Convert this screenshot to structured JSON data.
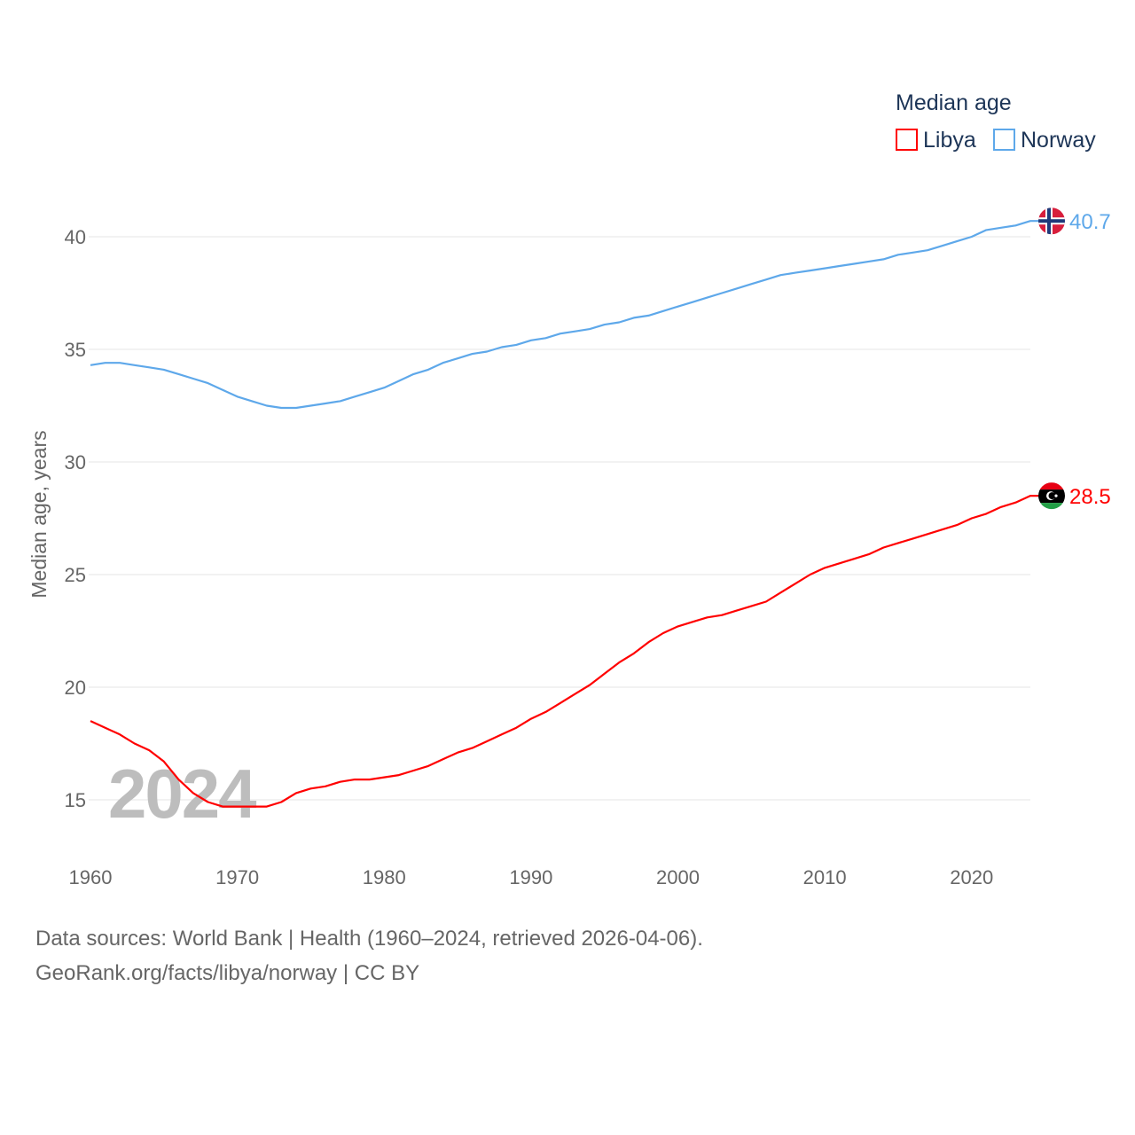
{
  "chart_data": {
    "type": "line",
    "title": "",
    "xlabel": "",
    "ylabel": "Median age, years",
    "xlim": [
      1960,
      2024
    ],
    "ylim": [
      13,
      42.5
    ],
    "yticks": [
      15,
      20,
      25,
      30,
      35,
      40
    ],
    "xticks": [
      1960,
      1970,
      1980,
      1990,
      2000,
      2010,
      2020
    ],
    "grid": true,
    "watermark_year": "2024",
    "legend": {
      "title": "Median age",
      "placement": "top-right"
    },
    "x": [
      1960,
      1961,
      1962,
      1963,
      1964,
      1965,
      1966,
      1967,
      1968,
      1969,
      1970,
      1971,
      1972,
      1973,
      1974,
      1975,
      1976,
      1977,
      1978,
      1979,
      1980,
      1981,
      1982,
      1983,
      1984,
      1985,
      1986,
      1987,
      1988,
      1989,
      1990,
      1991,
      1992,
      1993,
      1994,
      1995,
      1996,
      1997,
      1998,
      1999,
      2000,
      2001,
      2002,
      2003,
      2004,
      2005,
      2006,
      2007,
      2008,
      2009,
      2010,
      2011,
      2012,
      2013,
      2014,
      2015,
      2016,
      2017,
      2018,
      2019,
      2020,
      2021,
      2022,
      2023,
      2024
    ],
    "series": [
      {
        "name": "Libya",
        "color": "#ff0000",
        "end_label": "28.5",
        "values": [
          18.5,
          18.2,
          17.9,
          17.5,
          17.2,
          16.7,
          15.9,
          15.3,
          14.9,
          14.7,
          14.7,
          14.7,
          14.7,
          14.9,
          15.3,
          15.5,
          15.6,
          15.8,
          15.9,
          15.9,
          16.0,
          16.1,
          16.3,
          16.5,
          16.8,
          17.1,
          17.3,
          17.6,
          17.9,
          18.2,
          18.6,
          18.9,
          19.3,
          19.7,
          20.1,
          20.6,
          21.1,
          21.5,
          22.0,
          22.4,
          22.7,
          22.9,
          23.1,
          23.2,
          23.4,
          23.6,
          23.8,
          24.2,
          24.6,
          25.0,
          25.3,
          25.5,
          25.7,
          25.9,
          26.2,
          26.4,
          26.6,
          26.8,
          27.0,
          27.2,
          27.5,
          27.7,
          28.0,
          28.2,
          28.5
        ]
      },
      {
        "name": "Norway",
        "color": "#5ea8ea",
        "end_label": "40.7",
        "values": [
          34.3,
          34.4,
          34.4,
          34.3,
          34.2,
          34.1,
          33.9,
          33.7,
          33.5,
          33.2,
          32.9,
          32.7,
          32.5,
          32.4,
          32.4,
          32.5,
          32.6,
          32.7,
          32.9,
          33.1,
          33.3,
          33.6,
          33.9,
          34.1,
          34.4,
          34.6,
          34.8,
          34.9,
          35.1,
          35.2,
          35.4,
          35.5,
          35.7,
          35.8,
          35.9,
          36.1,
          36.2,
          36.4,
          36.5,
          36.7,
          36.9,
          37.1,
          37.3,
          37.5,
          37.7,
          37.9,
          38.1,
          38.3,
          38.4,
          38.5,
          38.6,
          38.7,
          38.8,
          38.9,
          39.0,
          39.2,
          39.3,
          39.4,
          39.6,
          39.8,
          40.0,
          40.3,
          40.4,
          40.5,
          40.7
        ]
      }
    ]
  },
  "footer": {
    "line1": "Data sources: World Bank | Health (1960–2024, retrieved 2026-04-06).",
    "line2": "GeoRank.org/facts/libya/norway | CC BY"
  }
}
